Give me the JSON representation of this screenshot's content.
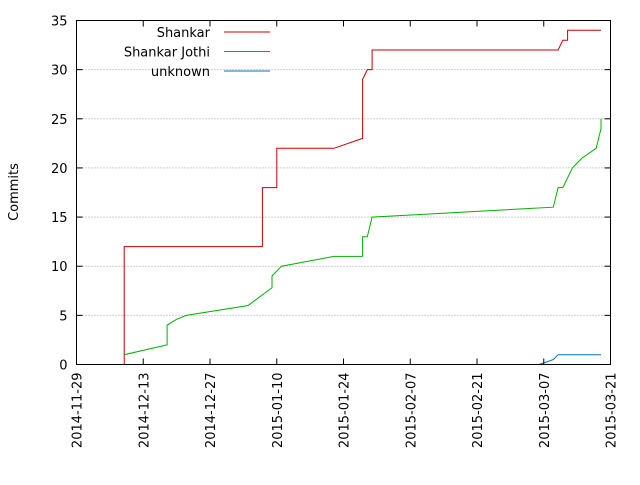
{
  "chart_data": {
    "type": "line",
    "title": "",
    "xlabel": "",
    "ylabel": "Commits",
    "x_axis_type": "date",
    "xlim": [
      "2014-11-29",
      "2015-03-21"
    ],
    "ylim": [
      0,
      35
    ],
    "x_ticks": [
      "2014-11-29",
      "2014-12-13",
      "2014-12-27",
      "2015-01-10",
      "2015-01-24",
      "2015-02-07",
      "2015-02-21",
      "2015-03-07",
      "2015-03-21"
    ],
    "y_ticks": [
      0,
      5,
      10,
      15,
      20,
      25,
      30,
      35
    ],
    "grid": true,
    "legend_position": "top-left",
    "series": [
      {
        "name": "Shankar",
        "color": "#cc0000",
        "points": [
          [
            "2014-12-09",
            0
          ],
          [
            "2014-12-09",
            12
          ],
          [
            "2015-01-07",
            12
          ],
          [
            "2015-01-07",
            18
          ],
          [
            "2015-01-10",
            18
          ],
          [
            "2015-01-10",
            22
          ],
          [
            "2015-01-22",
            22
          ],
          [
            "2015-01-28",
            23
          ],
          [
            "2015-01-28",
            29
          ],
          [
            "2015-01-29",
            30
          ],
          [
            "2015-01-30",
            30
          ],
          [
            "2015-01-30",
            32
          ],
          [
            "2015-03-10",
            32
          ],
          [
            "2015-03-11",
            33
          ],
          [
            "2015-03-12",
            33
          ],
          [
            "2015-03-12",
            34
          ],
          [
            "2015-03-19",
            34
          ]
        ]
      },
      {
        "name": "Shankar Jothi",
        "color": "#00b000",
        "points": [
          [
            "2014-12-09",
            1
          ],
          [
            "2014-12-18",
            2
          ],
          [
            "2014-12-18",
            4
          ],
          [
            "2014-12-20",
            4.6
          ],
          [
            "2014-12-22",
            5
          ],
          [
            "2015-01-04",
            6
          ],
          [
            "2015-01-09",
            7.8
          ],
          [
            "2015-01-09",
            9
          ],
          [
            "2015-01-11",
            10
          ],
          [
            "2015-01-22",
            11
          ],
          [
            "2015-01-28",
            11
          ],
          [
            "2015-01-28",
            13
          ],
          [
            "2015-01-29",
            13
          ],
          [
            "2015-01-30",
            15
          ],
          [
            "2015-03-09",
            16
          ],
          [
            "2015-03-10",
            18
          ],
          [
            "2015-03-11",
            18
          ],
          [
            "2015-03-12",
            19
          ],
          [
            "2015-03-13",
            20
          ],
          [
            "2015-03-15",
            21
          ],
          [
            "2015-03-18",
            22
          ],
          [
            "2015-03-19",
            24
          ],
          [
            "2015-03-19",
            25
          ]
        ]
      },
      {
        "name": "unknown",
        "color": "#0070c0",
        "points": [
          [
            "2015-03-06",
            0
          ],
          [
            "2015-03-09",
            0.5
          ],
          [
            "2015-03-10",
            1
          ],
          [
            "2015-03-19",
            1
          ]
        ]
      }
    ]
  }
}
